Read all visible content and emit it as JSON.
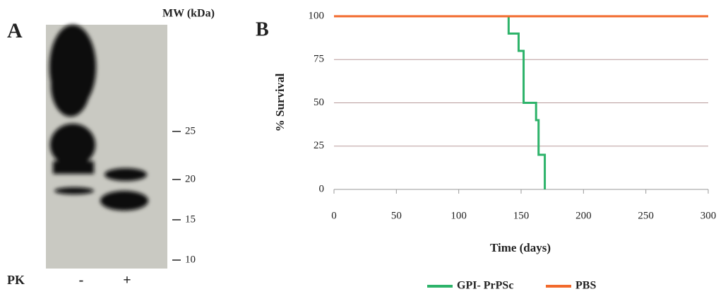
{
  "panel_a": {
    "label": "A",
    "mw_title": "MW (kDa)",
    "mw_markers": [
      25,
      20,
      15,
      10
    ],
    "row_label": "PK",
    "lanes": [
      "-",
      "+"
    ]
  },
  "chart_data": {
    "type": "line",
    "panel_label": "B",
    "xlabel": "Time (days)",
    "ylabel": "% Survival",
    "xlim": [
      0,
      300
    ],
    "xticks": [
      0,
      50,
      100,
      150,
      200,
      250,
      300
    ],
    "ylim": [
      0,
      100
    ],
    "yticks": [
      0,
      25,
      50,
      75,
      100
    ],
    "grid": true,
    "legend": "bottom",
    "series": [
      {
        "name": "GPI- PrPSc",
        "color": "#2db36a",
        "x": [
          139,
          140,
          140,
          148,
          148,
          152,
          152,
          162,
          162,
          164,
          164,
          169,
          169
        ],
        "values": [
          100,
          100,
          90,
          90,
          80,
          80,
          50,
          50,
          40,
          40,
          20,
          20,
          0
        ]
      },
      {
        "name": "PBS",
        "color": "#f26a2c",
        "x": [
          0,
          300
        ],
        "values": [
          100,
          100
        ]
      }
    ]
  }
}
